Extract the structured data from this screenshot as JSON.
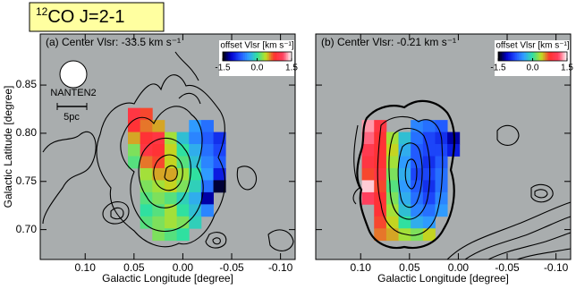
{
  "header": {
    "superscript": "12",
    "text": "CO J=2-1"
  },
  "chart_data": [
    {
      "type": "heatmap",
      "title": "(a) Center Vlsr: -33.5 km s⁻¹",
      "xlabel": "Galactic Longitude [degree]",
      "ylabel": "Galactic Latitude [degree]",
      "beam_label": "NANTEN2",
      "scale_label": "5pc",
      "colorbar_label": "offset Vlsr [km s⁻¹]",
      "clim": [
        -1.5,
        1.5
      ],
      "cticks": [
        -1.5,
        {
          "value": 0,
          "label": "0.0"
        },
        1.5
      ],
      "colormap": [
        "#000000",
        "#0000d0",
        "#2050ff",
        "#30a0ff",
        "#30e0a0",
        "#c0e020",
        "#ff3030",
        "#ff4060",
        "#ffffff"
      ],
      "xlim": [
        0.146,
        -0.115
      ],
      "ylim": [
        0.669,
        0.903
      ],
      "xticks": [
        {
          "value": 0.1,
          "label": "0.10"
        },
        0.05,
        {
          "value": 0,
          "label": "0.00"
        },
        -0.05,
        {
          "value": -0.1,
          "label": "-0.10"
        }
      ],
      "yticks": [
        {
          "value": 0.7,
          "label": "0.70"
        },
        0.75,
        {
          "value": 0.8,
          "label": "0.80"
        },
        0.85
      ],
      "x": [
        0.05,
        0.0375,
        0.025,
        0.0125,
        0,
        -0.0125,
        -0.025,
        -0.0375
      ],
      "y": [
        0.82,
        0.8075,
        0.795,
        0.7825,
        0.77,
        0.7575,
        0.745,
        0.7325,
        0.72,
        0.7075,
        0.695
      ],
      "values": [
        [
          0.9,
          0.7,
          null,
          null,
          null,
          null,
          null,
          null
        ],
        [
          0.8,
          0.6,
          0.5,
          null,
          null,
          -0.4,
          -0.6,
          null
        ],
        [
          0.5,
          0.8,
          0.9,
          0.3,
          -0.2,
          -0.5,
          -0.7,
          -0.9
        ],
        [
          0.2,
          0.9,
          0.8,
          0.4,
          0.0,
          -0.3,
          -0.6,
          -0.8
        ],
        [
          0.1,
          0.6,
          0.7,
          0.4,
          0.1,
          -0.2,
          -0.5,
          -0.7
        ],
        [
          null,
          0.3,
          0.5,
          0.5,
          0.3,
          0.0,
          -0.4,
          -1.0
        ],
        [
          null,
          0.2,
          0.3,
          0.4,
          0.2,
          -0.1,
          -0.6,
          -1.4
        ],
        [
          null,
          0.1,
          0.2,
          0.1,
          -0.1,
          -0.3,
          -1.2,
          null
        ],
        [
          null,
          0.0,
          0.1,
          0.3,
          0.0,
          -0.2,
          -0.5,
          null
        ],
        [
          null,
          0.1,
          0.2,
          0.3,
          0.2,
          -0.1,
          null,
          null
        ],
        [
          null,
          null,
          0.2,
          0.1,
          0.0,
          null,
          null,
          null
        ]
      ]
    },
    {
      "type": "heatmap",
      "title": "(b) Center Vlsr: -0.21 km s⁻¹",
      "xlabel": "Galactic Longitude [degree]",
      "colorbar_label": "offset Vlsr [km s⁻¹]",
      "clim": [
        -1.5,
        1.5
      ],
      "cticks": [
        -1.5,
        {
          "value": 0,
          "label": "0.0"
        },
        1.5
      ],
      "colormap": [
        "#000000",
        "#0000d0",
        "#2050ff",
        "#30a0ff",
        "#30e0a0",
        "#c0e020",
        "#ff3030",
        "#ff4060",
        "#ffffff"
      ],
      "xlim": [
        0.146,
        -0.115
      ],
      "ylim": [
        0.669,
        0.903
      ],
      "xticks": [
        {
          "value": 0.1,
          "label": "0.10"
        },
        0.05,
        {
          "value": 0,
          "label": "0.00"
        },
        -0.05,
        {
          "value": -0.1,
          "label": "-0.10"
        }
      ],
      "yticks": [
        {
          "value": 0.7,
          "label": "0.70"
        },
        0.75,
        {
          "value": 0.8,
          "label": "0.80"
        },
        0.85
      ],
      "x": [
        0.0925,
        0.08,
        0.0675,
        0.055,
        0.0425,
        0.03,
        0.0175,
        0.005
      ],
      "y": [
        0.8075,
        0.795,
        0.7825,
        0.77,
        0.7575,
        0.745,
        0.7325,
        0.72,
        0.7075,
        0.695
      ],
      "values": [
        [
          1.3,
          0.9,
          null,
          null,
          -0.5,
          -0.6,
          -0.7,
          null
        ],
        [
          1.2,
          0.8,
          0.3,
          -0.2,
          -0.6,
          -0.8,
          -0.9,
          -1.2
        ],
        [
          1.0,
          0.8,
          0.4,
          -0.3,
          -0.7,
          -0.8,
          -0.8,
          -1.0
        ],
        [
          0.9,
          0.8,
          0.3,
          -0.4,
          -0.7,
          -0.9,
          -0.7,
          null
        ],
        [
          0.7,
          0.9,
          0.2,
          -0.3,
          -0.8,
          -0.8,
          -0.6,
          null
        ],
        [
          1.4,
          0.7,
          0.1,
          -0.4,
          -0.7,
          -0.9,
          -0.6,
          null
        ],
        [
          1.1,
          0.8,
          0.2,
          -0.3,
          -0.6,
          -0.8,
          -0.5,
          null
        ],
        [
          null,
          0.8,
          0.3,
          -0.2,
          -0.5,
          -0.6,
          -0.4,
          null
        ],
        [
          null,
          0.7,
          0.4,
          0.0,
          -0.3,
          -0.4,
          null,
          null
        ],
        [
          null,
          0.6,
          0.5,
          0.3,
          0.2,
          0.4,
          null,
          null
        ]
      ]
    }
  ]
}
